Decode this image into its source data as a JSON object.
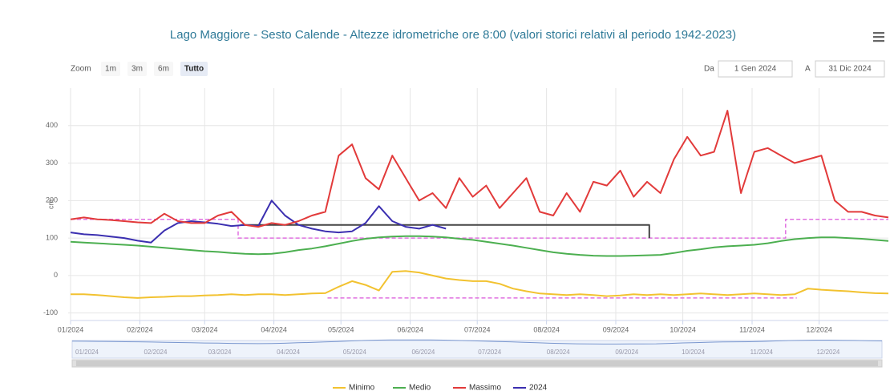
{
  "ui": {
    "zoom_label": "Zoom",
    "buttons": [
      "1m",
      "3m",
      "6m",
      "Tutto"
    ],
    "selected": 3,
    "from_label": "Da",
    "from": "1 Gen 2024",
    "to_label": "A",
    "to": "31 Dic 2024"
  },
  "chart_data": {
    "type": "line",
    "title": "Lago Maggiore - Sesto Calende - Altezze idrometriche ore 8:00 (valori storici relativi al periodo 1942-2023)",
    "y_label": "cm",
    "xlim": [
      0,
      366
    ],
    "xticks": [
      {
        "value": 0,
        "label": "01/2024"
      },
      {
        "value": 31,
        "label": "02/2024"
      },
      {
        "value": 60,
        "label": "03/2024"
      },
      {
        "value": 91,
        "label": "04/2024"
      },
      {
        "value": 121,
        "label": "05/2024"
      },
      {
        "value": 152,
        "label": "06/2024"
      },
      {
        "value": 182,
        "label": "07/2024"
      },
      {
        "value": 213,
        "label": "08/2024"
      },
      {
        "value": 244,
        "label": "09/2024"
      },
      {
        "value": 274,
        "label": "10/2024"
      },
      {
        "value": 305,
        "label": "11/2024"
      },
      {
        "value": 335,
        "label": "12/2024"
      }
    ],
    "ylim": [
      -120,
      500
    ],
    "yticks": [
      -100,
      0,
      100,
      200,
      300,
      400
    ],
    "grid": true,
    "legend": "bottom",
    "x": [
      0,
      6,
      12,
      18,
      24,
      30,
      36,
      42,
      48,
      54,
      60,
      66,
      72,
      78,
      84,
      90,
      96,
      102,
      108,
      114,
      120,
      126,
      132,
      138,
      144,
      150,
      156,
      162,
      168,
      174,
      180,
      186,
      192,
      198,
      204,
      210,
      216,
      222,
      228,
      234,
      240,
      246,
      252,
      258,
      264,
      270,
      276,
      282,
      288,
      294,
      300,
      306,
      312,
      318,
      324,
      330,
      336,
      342,
      348,
      354,
      360,
      366
    ],
    "series": [
      {
        "name": "Minimo",
        "color": "#f2c230",
        "values": [
          -50,
          -50,
          -52,
          -55,
          -58,
          -60,
          -58,
          -57,
          -55,
          -55,
          -53,
          -52,
          -50,
          -52,
          -50,
          -50,
          -52,
          -50,
          -48,
          -47,
          -30,
          -15,
          -25,
          -40,
          10,
          12,
          8,
          0,
          -8,
          -12,
          -15,
          -15,
          -22,
          -35,
          -42,
          -48,
          -50,
          -52,
          -50,
          -52,
          -55,
          -53,
          -50,
          -52,
          -50,
          -52,
          -50,
          -48,
          -50,
          -52,
          -50,
          -48,
          -50,
          -52,
          -50,
          -35,
          -38,
          -40,
          -42,
          -45,
          -47,
          -48
        ]
      },
      {
        "name": "Medio",
        "color": "#4caf50",
        "values": [
          90,
          88,
          86,
          84,
          82,
          80,
          77,
          74,
          71,
          68,
          65,
          63,
          60,
          58,
          57,
          58,
          62,
          68,
          72,
          78,
          85,
          92,
          98,
          102,
          104,
          105,
          105,
          104,
          102,
          98,
          95,
          90,
          85,
          80,
          74,
          68,
          62,
          58,
          55,
          53,
          52,
          52,
          53,
          54,
          55,
          60,
          66,
          70,
          75,
          78,
          80,
          82,
          86,
          92,
          97,
          100,
          102,
          102,
          100,
          98,
          95,
          92
        ]
      },
      {
        "name": "Massimo",
        "color": "#e23a3a",
        "values": [
          150,
          155,
          150,
          148,
          145,
          142,
          140,
          165,
          145,
          140,
          140,
          160,
          170,
          135,
          130,
          140,
          135,
          145,
          160,
          170,
          320,
          350,
          260,
          230,
          320,
          260,
          200,
          220,
          180,
          260,
          210,
          240,
          180,
          220,
          260,
          170,
          160,
          220,
          170,
          250,
          240,
          280,
          210,
          250,
          220,
          310,
          370,
          320,
          330,
          440,
          220,
          330,
          340,
          320,
          300,
          310,
          320,
          200,
          170,
          170,
          160,
          155
        ]
      },
      {
        "name": "2024",
        "color": "#3b2fb0",
        "values": [
          115,
          110,
          108,
          104,
          100,
          93,
          88,
          120,
          140,
          145,
          142,
          138,
          132,
          135,
          132,
          200,
          160,
          135,
          125,
          118,
          115,
          118,
          140,
          185,
          145,
          130,
          125,
          135,
          125,
          null,
          null,
          null,
          null,
          null,
          null,
          null,
          null,
          null,
          null,
          null,
          null,
          null,
          null,
          null,
          null,
          null,
          null,
          null,
          null,
          null,
          null,
          null,
          null,
          null,
          null,
          null,
          null,
          null,
          null,
          null,
          null,
          null
        ]
      },
      {
        "color": "#444444",
        "x": [
          76,
          259,
          259
        ],
        "values": [
          135,
          135,
          100
        ]
      },
      {
        "color": "#e070e0",
        "dashed": true,
        "x": [
          0,
          75,
          75,
          320,
          320,
          366
        ],
        "values": [
          150,
          150,
          100,
          100,
          150,
          150
        ]
      },
      {
        "color": "#e070e0",
        "dashed": true,
        "x": [
          115,
          325
        ],
        "values": [
          -60,
          -60
        ]
      }
    ],
    "navigator": {
      "series": 1,
      "color": "#7a97cf"
    }
  }
}
